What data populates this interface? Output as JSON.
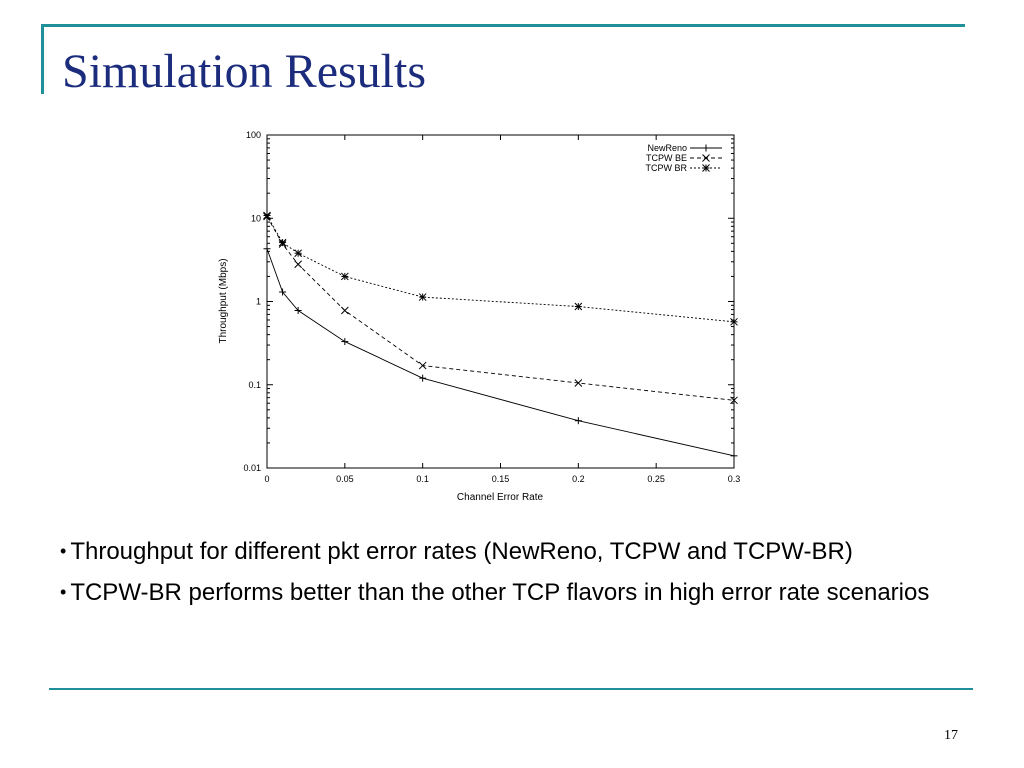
{
  "slide": {
    "title": "Simulation Results",
    "number": "17",
    "bullets": [
      "Throughput for different pkt error rates (NewReno, TCPW and TCPW-BR)",
      "TCPW-BR performs better than the other TCP flavors in high error rate scenarios"
    ],
    "bullet_glyph": "•"
  },
  "colors": {
    "accent": "#1f8f9a",
    "title_text": "#1c2c7d"
  },
  "chart_data": {
    "type": "line",
    "xlabel": "Channel Error Rate",
    "ylabel": "Throughput (Mbps)",
    "xlim": [
      0,
      0.3
    ],
    "ylim": [
      0.01,
      100
    ],
    "yscale": "log",
    "grid": false,
    "legend_position": "top-right",
    "xticks": [
      0,
      0.05,
      0.1,
      0.15,
      0.2,
      0.25,
      0.3
    ],
    "xtick_labels": [
      "0",
      "0.05",
      "0.1",
      "0.15",
      "0.2",
      "0.25",
      "0.3"
    ],
    "yticks": [
      0.01,
      0.1,
      1,
      10,
      100
    ],
    "ytick_labels": [
      "0.01",
      "0.1",
      "1",
      "10",
      "100"
    ],
    "series": [
      {
        "name": "NewReno",
        "dash": "solid",
        "marker": "plus",
        "x": [
          0,
          0.01,
          0.02,
          0.05,
          0.1,
          0.2,
          0.3
        ],
        "y": [
          4.3,
          1.3,
          0.78,
          0.33,
          0.12,
          0.037,
          0.014
        ]
      },
      {
        "name": "TCPW BE",
        "dash": "dashed",
        "marker": "cross",
        "x": [
          0,
          0.01,
          0.02,
          0.05,
          0.1,
          0.2,
          0.3
        ],
        "y": [
          10.5,
          4.9,
          2.8,
          0.78,
          0.17,
          0.105,
          0.065
        ]
      },
      {
        "name": "TCPW BR",
        "dash": "dotted",
        "marker": "star",
        "x": [
          0,
          0.01,
          0.02,
          0.05,
          0.1,
          0.2,
          0.3
        ],
        "y": [
          10.8,
          5.1,
          3.8,
          2.0,
          1.13,
          0.87,
          0.57
        ]
      }
    ]
  }
}
